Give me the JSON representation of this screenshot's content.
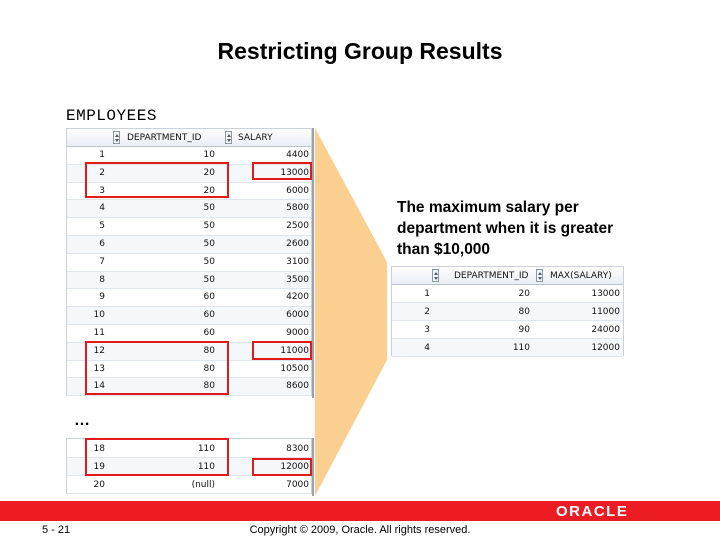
{
  "slide": {
    "title": "Restricting Group Results",
    "employees_label": "EMPLOYEES",
    "ellipsis": "…",
    "description": "The maximum salary per department when it is greater than $10,000"
  },
  "employees": {
    "columns": [
      "DEPARTMENT_ID",
      "SALARY"
    ],
    "rows_top": [
      {
        "n": "1",
        "dept": "10",
        "salary": "4400"
      },
      {
        "n": "2",
        "dept": "20",
        "salary": "13000"
      },
      {
        "n": "3",
        "dept": "20",
        "salary": "6000"
      },
      {
        "n": "4",
        "dept": "50",
        "salary": "5800"
      },
      {
        "n": "5",
        "dept": "50",
        "salary": "2500"
      },
      {
        "n": "6",
        "dept": "50",
        "salary": "2600"
      },
      {
        "n": "7",
        "dept": "50",
        "salary": "3100"
      },
      {
        "n": "8",
        "dept": "50",
        "salary": "3500"
      },
      {
        "n": "9",
        "dept": "60",
        "salary": "4200"
      },
      {
        "n": "10",
        "dept": "60",
        "salary": "6000"
      },
      {
        "n": "11",
        "dept": "60",
        "salary": "9000"
      },
      {
        "n": "12",
        "dept": "80",
        "salary": "11000"
      },
      {
        "n": "13",
        "dept": "80",
        "salary": "10500"
      },
      {
        "n": "14",
        "dept": "80",
        "salary": "8600"
      }
    ],
    "rows_bottom": [
      {
        "n": "18",
        "dept": "110",
        "salary": "8300"
      },
      {
        "n": "19",
        "dept": "110",
        "salary": "12000"
      },
      {
        "n": "20",
        "dept": "(null)",
        "salary": "7000"
      }
    ]
  },
  "result": {
    "columns": [
      "DEPARTMENT_ID",
      "MAX(SALARY)"
    ],
    "rows": [
      {
        "n": "1",
        "dept": "20",
        "max": "13000"
      },
      {
        "n": "2",
        "dept": "80",
        "max": "11000"
      },
      {
        "n": "3",
        "dept": "90",
        "max": "24000"
      },
      {
        "n": "4",
        "dept": "110",
        "max": "12000"
      }
    ]
  },
  "footer": {
    "page": "5 - 21",
    "copyright": "Copyright © 2009, Oracle. All rights reserved.",
    "logo_text": "ORACLE"
  },
  "colors": {
    "highlight": "#e31a1a",
    "funnel": "#fbcf8f",
    "brand_red": "#ec1c24"
  }
}
